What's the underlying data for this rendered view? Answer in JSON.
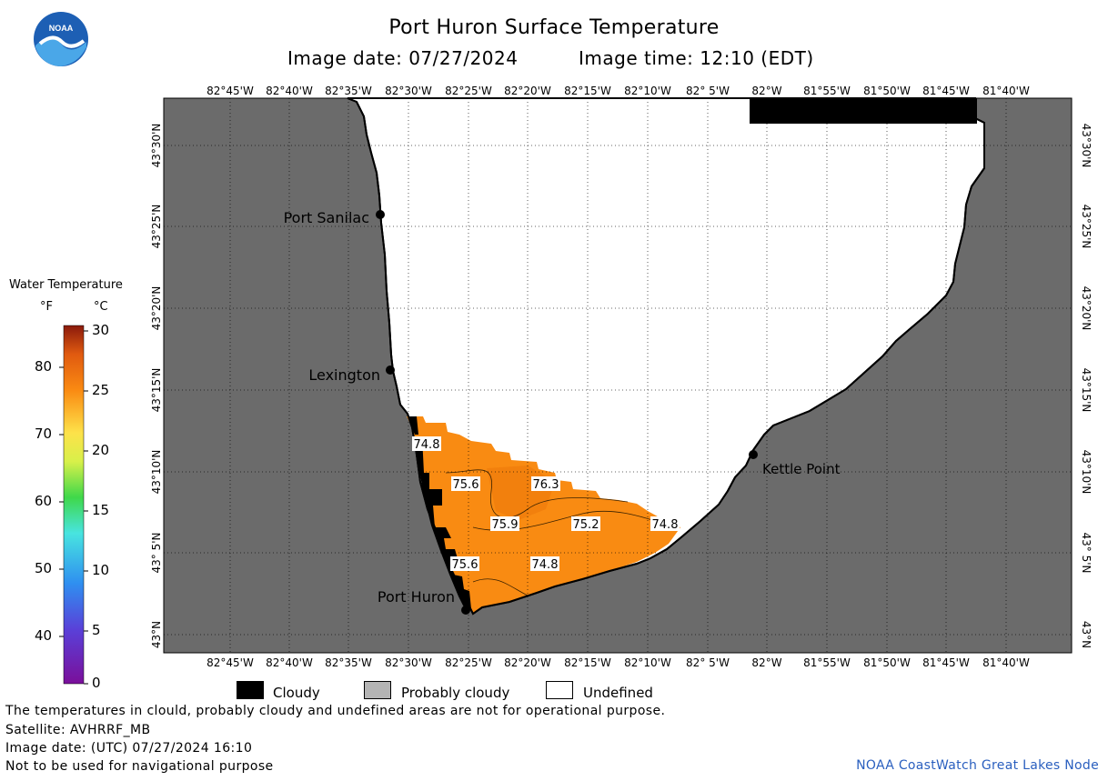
{
  "header": {
    "title": "Port Huron Surface Temperature",
    "image_date": "Image date: 07/27/2024",
    "image_time": "Image time: 12:10 (EDT)"
  },
  "logo": {
    "text": "NOAA",
    "icon": "noaa-logo"
  },
  "legend": {
    "title": "Water Temperature",
    "unit_f": "°F",
    "unit_c": "°C",
    "f_ticks": [
      "80",
      "70",
      "60",
      "50",
      "40"
    ],
    "c_ticks": [
      "30",
      "25",
      "20",
      "15",
      "10",
      "5",
      "0"
    ]
  },
  "map": {
    "lon_labels": [
      "82°45'W",
      "82°40'W",
      "82°35'W",
      "82°30'W",
      "82°25'W",
      "82°20'W",
      "82°15'W",
      "82°10'W",
      "82° 5'W",
      "82°W",
      "81°55'W",
      "81°50'W",
      "81°45'W",
      "81°40'W"
    ],
    "lat_labels": [
      "43°30'N",
      "43°25'N",
      "43°20'N",
      "43°15'N",
      "43°10'N",
      "43° 5'N",
      "43°N"
    ],
    "places": [
      "Port Sanilac",
      "Lexington",
      "Kettle Point",
      "Port Huron"
    ],
    "temperatures": [
      "74.8",
      "75.6",
      "76.3",
      "75.9",
      "75.2",
      "74.8",
      "75.6",
      "74.8"
    ],
    "colors": {
      "land": "#6b6b6b",
      "water_warm": "#f98b12",
      "cloud": "#000000",
      "undefined": "#ffffff"
    }
  },
  "key": {
    "cloudy": "Cloudy",
    "probably_cloudy": "Probably cloudy",
    "undefined": "Undefined"
  },
  "footer": {
    "disclaimer": "The temperatures in clould, probably cloudy and undefined areas are not for operational purpose.",
    "satellite": "Satellite: AVHRRF_MB",
    "utc_date": "Image date: (UTC) 07/27/2024  16:10",
    "nav_warning": "Not to be used for navigational purpose",
    "credit": "NOAA CoastWatch Great Lakes Node"
  }
}
